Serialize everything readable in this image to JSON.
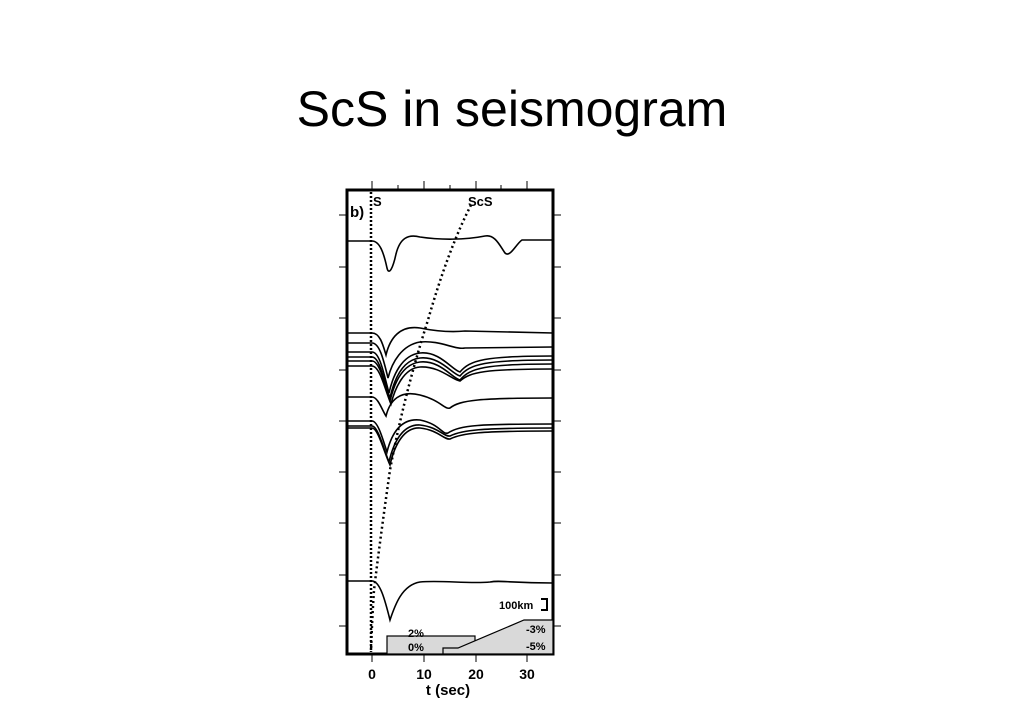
{
  "slide": {
    "title": "ScS in seismogram"
  },
  "figure": {
    "panel_label": "b)",
    "phase_labels": [
      "S",
      "ScS"
    ],
    "xlabel": "t (sec)",
    "x_ticks": [
      "0",
      "10",
      "20",
      "30"
    ],
    "scale_label": "100km",
    "model_labels": [
      "2%",
      "0%",
      "-3%",
      "-5%"
    ],
    "colors": {
      "line": "#000000",
      "fill": "#d9d9d9",
      "background": "#ffffff"
    }
  }
}
